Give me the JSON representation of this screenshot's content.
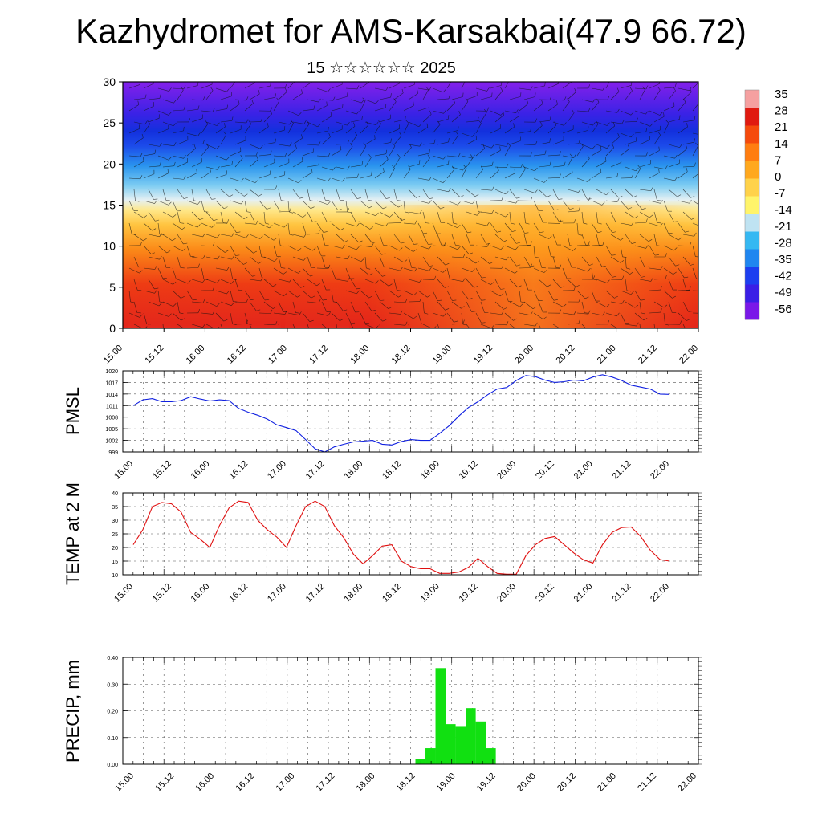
{
  "header": {
    "title": "Kazhydromet for AMS-Karsakbai(47.9 66.72)",
    "subtitle": "15 ☆☆☆☆☆☆ 2025"
  },
  "time_ticks": [
    "15.00",
    "15.12",
    "16.00",
    "16.12",
    "17.00",
    "17.12",
    "18.00",
    "18.12",
    "19.00",
    "19.12",
    "20.00",
    "20.12",
    "21.00",
    "21.12",
    "22.00"
  ],
  "chart_data": [
    {
      "type": "heatmap",
      "title": "",
      "xlabel": "",
      "ylabel": "",
      "ylim": [
        0,
        30
      ],
      "yticks": [
        0,
        5,
        10,
        15,
        20,
        25,
        30
      ],
      "colorbar": {
        "labels": [
          "35",
          "28",
          "21",
          "14",
          "7",
          "0",
          "-7",
          "-14",
          "-21",
          "-28",
          "-35",
          "-42",
          "-49",
          "-56"
        ],
        "range": [
          -63,
          42
        ],
        "colors": [
          "#7a18e8",
          "#3a1ee6",
          "#1c3ef0",
          "#1f86f0",
          "#35b8f2",
          "#bfe3f2",
          "#fff46a",
          "#ffd24a",
          "#ffa81e",
          "#ff7d10",
          "#f54a0c",
          "#e01a10",
          "#f5a0a0"
        ]
      },
      "annotations": "wind barbs overlay"
    },
    {
      "type": "line",
      "ylabel": "PMSL",
      "ylim": [
        999,
        1020
      ],
      "yticks": [
        999,
        1002,
        1005,
        1008,
        1011,
        1014,
        1017,
        1020
      ],
      "color": "#1020e0",
      "x": [
        0,
        3,
        6,
        9,
        12,
        15,
        18,
        21,
        24,
        27,
        30,
        33,
        36,
        39,
        42,
        45,
        48,
        51,
        54,
        57,
        60,
        63,
        66,
        69,
        72,
        75,
        78,
        81,
        84,
        87,
        90,
        93,
        96,
        99,
        102,
        105,
        108,
        111,
        114,
        117,
        120,
        123,
        126,
        129,
        132,
        135,
        138,
        141,
        144,
        147,
        150,
        153,
        156,
        159,
        162,
        165,
        168
      ],
      "values": [
        1011,
        1012.5,
        1012.8,
        1012,
        1012,
        1012.3,
        1013.3,
        1012.7,
        1012.2,
        1012.5,
        1012.3,
        1010.3,
        1009.3,
        1008.5,
        1007.5,
        1006,
        1005.3,
        1004.5,
        1002.2,
        999.8,
        999,
        1000.3,
        1001,
        1001.6,
        1001.8,
        1002,
        1001,
        1000.8,
        1001.7,
        1002.2,
        1002,
        1002,
        1003.8,
        1005.8,
        1008.3,
        1010.5,
        1012,
        1013.8,
        1015.3,
        1015.7,
        1017.5,
        1018.8,
        1018.5,
        1017.6,
        1017,
        1017.2,
        1017.6,
        1017.4,
        1018.4,
        1019,
        1018.4,
        1017.5,
        1016.3,
        1015.8,
        1015.3,
        1014,
        1013.9
      ]
    },
    {
      "type": "line",
      "ylabel": "TEMP at 2 M",
      "ylim": [
        10,
        40
      ],
      "yticks": [
        10,
        15,
        20,
        25,
        30,
        35,
        40
      ],
      "color": "#e01010",
      "x": [
        0,
        3,
        6,
        9,
        12,
        15,
        18,
        21,
        24,
        27,
        30,
        33,
        36,
        39,
        42,
        45,
        48,
        51,
        54,
        57,
        60,
        63,
        66,
        69,
        72,
        75,
        78,
        81,
        84,
        87,
        90,
        93,
        96,
        99,
        102,
        105,
        108,
        111,
        114,
        117,
        120,
        123,
        126,
        129,
        132,
        135,
        138,
        141,
        144,
        147,
        150,
        153,
        156,
        159,
        162,
        165,
        168
      ],
      "values": [
        21,
        26.5,
        35,
        36.5,
        36,
        33,
        25.5,
        23,
        20,
        28,
        34.5,
        37,
        36.5,
        30,
        26.5,
        23.8,
        20,
        28,
        35,
        37,
        35,
        28,
        23.5,
        17.5,
        14,
        17,
        20.5,
        21,
        15,
        13,
        12.2,
        12.2,
        10.5,
        10.5,
        11,
        12.7,
        16,
        13,
        10.5,
        10.2,
        10.2,
        17,
        21,
        23.3,
        24,
        21,
        18,
        15.5,
        14.3,
        21,
        25.5,
        27.3,
        27.5,
        24,
        19,
        15.6,
        15
      ]
    },
    {
      "type": "bar",
      "ylabel": "PRECIP, mm",
      "ylim": [
        0,
        0.4
      ],
      "yticks": [
        "0.00",
        "0.10",
        "0.20",
        "0.30",
        "0.40"
      ],
      "color": "#11e011",
      "x": [
        84,
        87,
        90,
        93,
        96,
        99,
        102,
        105,
        108,
        111
      ],
      "values": [
        0.02,
        0.06,
        0.36,
        0.15,
        0.14,
        0.21,
        0.16,
        0.06,
        0,
        0
      ]
    }
  ]
}
